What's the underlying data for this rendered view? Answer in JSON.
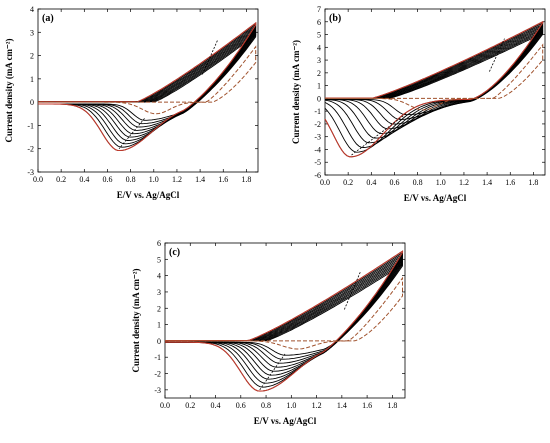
{
  "chart_data": [
    {
      "type": "line",
      "panel_label": "(a)",
      "xlabel": "E/V vs. Ag/AgCl",
      "ylabel": "Current density (mA cm⁻²)",
      "xlim": [
        0.0,
        1.9
      ],
      "ylim": [
        -3,
        4
      ],
      "xticks": [
        "0.0",
        "0.2",
        "0.4",
        "0.6",
        "0.8",
        "1.0",
        "1.2",
        "1.4",
        "1.6",
        "1.8"
      ],
      "yticks": [
        "-3",
        "-2",
        "-1",
        "0",
        "1",
        "2",
        "3",
        "4"
      ],
      "xtick_values": [
        0,
        0.2,
        0.4,
        0.6,
        0.8,
        1.0,
        1.2,
        1.4,
        1.6,
        1.8
      ],
      "ytick_values": [
        -3,
        -2,
        -1,
        0,
        1,
        2,
        3,
        4
      ],
      "cycles": 10,
      "anodic_end": 3.4,
      "cathodic_peak": {
        "E": [
          0.92,
          0.7
        ],
        "j": [
          -0.7,
          -2.0
        ]
      },
      "first_scan_peak": {
        "E": 1.02,
        "j": -0.5
      },
      "anodic_onset": 1.0
    },
    {
      "type": "line",
      "panel_label": "(b)",
      "xlabel": "E/V vs. Ag/AgCl",
      "ylabel": "Current density (mA cm⁻²)",
      "xlim": [
        0.0,
        1.9
      ],
      "ylim": [
        -6,
        7
      ],
      "xticks": [
        "0.0",
        "0.2",
        "0.4",
        "0.6",
        "0.8",
        "1.0",
        "1.2",
        "1.4",
        "1.6",
        "1.8"
      ],
      "yticks": [
        "-6",
        "-5",
        "-4",
        "-3",
        "-2",
        "-1",
        "0",
        "1",
        "2",
        "3",
        "4",
        "5",
        "6",
        "7"
      ],
      "xtick_values": [
        0,
        0.2,
        0.4,
        0.6,
        0.8,
        1.0,
        1.2,
        1.4,
        1.6,
        1.8
      ],
      "ytick_values": [
        -6,
        -5,
        -4,
        -3,
        -2,
        -1,
        0,
        1,
        2,
        3,
        4,
        5,
        6,
        7
      ],
      "cycles": 10,
      "anodic_end": 6.0,
      "cathodic_peak": {
        "E": [
          0.7,
          0.22
        ],
        "j": [
          -1.2,
          -4.5
        ]
      },
      "first_scan_peak": {
        "E": 0.85,
        "j": -0.9
      },
      "anodic_onset": 0.55
    },
    {
      "type": "line",
      "panel_label": "(c)",
      "xlabel": "E/V vs. Ag/AgCl",
      "ylabel": "Current density (mA cm⁻²)",
      "xlim": [
        0.0,
        1.9
      ],
      "ylim": [
        -3.5,
        6
      ],
      "xticks": [
        "0.0",
        "0.2",
        "0.4",
        "0.6",
        "0.8",
        "1.0",
        "1.2",
        "1.4",
        "1.6",
        "1.8"
      ],
      "yticks": [
        "-3",
        "-2",
        "-1",
        "0",
        "1",
        "2",
        "3",
        "4",
        "5",
        "6"
      ],
      "xtick_values": [
        0,
        0.2,
        0.4,
        0.6,
        0.8,
        1.0,
        1.2,
        1.4,
        1.6,
        1.8
      ],
      "ytick_values": [
        -3,
        -2,
        -1,
        0,
        1,
        2,
        3,
        4,
        5,
        6
      ],
      "cycles": 10,
      "anodic_end": 5.5,
      "cathodic_peak": {
        "E": [
          0.95,
          0.75
        ],
        "j": [
          -0.8,
          -3.0
        ]
      },
      "first_scan_peak": {
        "E": 1.05,
        "j": -0.5
      },
      "anodic_onset": 0.8
    }
  ]
}
